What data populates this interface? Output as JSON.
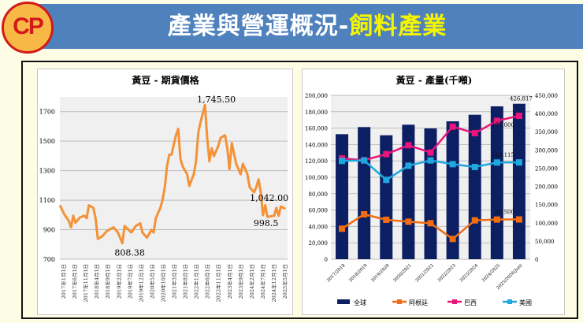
{
  "header": {
    "title_main": "產業與營運概況-",
    "title_highlight": "飼料產業",
    "logo_text": "CP"
  },
  "colors": {
    "banner": "#4f81bd",
    "price_line": "#f39237",
    "global": "#0c1f63",
    "argentina": "#f26c12",
    "brazil": "#e8157a",
    "usa": "#1fa8e0"
  },
  "chart_data": [
    {
      "type": "line",
      "title": "黃豆 - 期貨價格",
      "ylim": [
        700,
        1800
      ],
      "yticks": [
        700,
        900,
        1100,
        1300,
        1500,
        1700
      ],
      "grid": true,
      "xticks": [
        "2017年1月1日",
        "2017年6月1日",
        "2017年11月1日",
        "2018年4月1日",
        "2018年9月1日",
        "2019年2月1日",
        "2019年7月1日",
        "2019年12月1日",
        "2020年5月1日",
        "2020年10月1日",
        "2021年3月1日",
        "2021年8月1日",
        "2022年1月1日",
        "2022年6月1日",
        "2022年11月1日",
        "2023年4月1日",
        "2023年9月1日",
        "2024年2月1日",
        "2024年7月1日",
        "2024年12月1日",
        "2025年5月1日"
      ],
      "annotations": [
        {
          "text": "1,745.50",
          "date": "2022-06",
          "value": 1745.5
        },
        {
          "text": "808.38",
          "date": "2019-05",
          "value": 808.38
        },
        {
          "text": "998.5",
          "date": "2024-08",
          "value": 998.5
        },
        {
          "text": "1,042.00",
          "date": "2025-06",
          "value": 1042
        }
      ],
      "series": [
        {
          "dates": [
            "2017-01",
            "2017-03",
            "2017-05",
            "2017-06",
            "2017-07",
            "2017-08",
            "2017-10",
            "2017-12",
            "2018-01",
            "2018-02",
            "2018-04",
            "2018-05",
            "2018-06",
            "2018-08",
            "2018-10",
            "2019-01",
            "2019-03",
            "2019-05",
            "2019-06",
            "2019-09",
            "2019-11",
            "2020-01",
            "2020-02",
            "2020-04",
            "2020-06",
            "2020-07",
            "2020-08",
            "2020-10",
            "2020-11",
            "2020-12",
            "2021-01",
            "2021-02",
            "2021-03",
            "2021-05",
            "2021-06",
            "2021-07",
            "2021-08",
            "2021-10",
            "2021-11",
            "2022-01",
            "2022-02",
            "2022-03",
            "2022-04",
            "2022-06",
            "2022-07",
            "2022-08",
            "2022-09",
            "2022-10",
            "2022-12",
            "2023-01",
            "2023-03",
            "2023-04",
            "2023-05",
            "2023-06",
            "2023-08",
            "2023-09",
            "2023-10",
            "2023-11",
            "2024-01",
            "2024-02",
            "2024-04",
            "2024-05",
            "2024-06",
            "2024-07",
            "2024-08",
            "2024-09",
            "2024-10",
            "2025-01",
            "2025-02",
            "2025-03",
            "2025-04",
            "2025-06"
          ],
          "values": [
            1066,
            1004,
            960,
            916,
            995,
            947,
            983,
            995,
            978,
            1066,
            1048,
            978,
            837,
            855,
            890,
            916,
            881,
            808.38,
            925,
            881,
            925,
            943,
            881,
            846,
            899,
            881,
            978,
            1048,
            1101,
            1189,
            1329,
            1408,
            1408,
            1540,
            1584,
            1382,
            1329,
            1276,
            1197,
            1276,
            1364,
            1557,
            1628,
            1745.5,
            1522,
            1364,
            1452,
            1399,
            1469,
            1522,
            1540,
            1452,
            1311,
            1487,
            1346,
            1311,
            1276,
            1346,
            1276,
            1189,
            1153,
            1189,
            1241,
            1153,
            998.5,
            1066,
            987,
            995,
            1048,
            995,
            1057,
            1042
          ]
        }
      ]
    },
    {
      "type": "bar+line",
      "title": "黃豆 - 產量(千噸)",
      "categories": [
        "2017/2018",
        "2018/2019",
        "2019/2020",
        "2020/2021",
        "2021/2022",
        "2022/2023",
        "2023/2024",
        "2024/2025",
        "2025/2026(Jun)"
      ],
      "ylim_left": [
        0,
        200000
      ],
      "yticks_left": [
        "0",
        "20,000",
        "40,000",
        "60,000",
        "80,000",
        "100,000",
        "120,000",
        "140,000",
        "160,000",
        "180,000",
        "200,000"
      ],
      "ylim_right": [
        0,
        450000
      ],
      "yticks_right": [
        "0",
        "50,000",
        "100,000",
        "150,000",
        "200,000",
        "250,000",
        "300,000",
        "350,000",
        "400,000",
        "450,000"
      ],
      "legend_position": "bottom",
      "grid": true,
      "series": [
        {
          "name": "全球",
          "type": "bar",
          "axis": "right",
          "values": [
            343300,
            362800,
            340300,
            369300,
            359100,
            378600,
            396600,
            419700,
            426817
          ],
          "last_label": "426,817"
        },
        {
          "name": "阿根廷",
          "type": "line",
          "axis": "left",
          "values": [
            37200,
            54800,
            48100,
            45800,
            43900,
            24700,
            47400,
            48400,
            48500
          ],
          "last_label": "48,500"
        },
        {
          "name": "巴西",
          "type": "line",
          "axis": "left",
          "values": [
            123000,
            120800,
            128200,
            139100,
            130100,
            161800,
            153800,
            168900,
            175000
          ],
          "last_label": "175,000"
        },
        {
          "name": "美國",
          "type": "line",
          "axis": "left",
          "values": [
            119900,
            120500,
            96800,
            114100,
            120500,
            116000,
            112500,
            118000,
            118115
          ],
          "last_label": "118,115"
        }
      ]
    }
  ]
}
